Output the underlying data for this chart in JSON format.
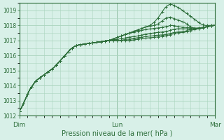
{
  "bg_color": "#d8f0e8",
  "grid_color": "#aad4be",
  "line_color": "#2d6e3a",
  "marker_color": "#2d6e3a",
  "xlabel": "Pression niveau de la mer( hPa )",
  "xlabel_color": "#2d6e3a",
  "tick_color": "#2d6e3a",
  "ylim": [
    1012,
    1019.5
  ],
  "yticks": [
    1012,
    1013,
    1014,
    1015,
    1016,
    1017,
    1018,
    1019
  ],
  "xtick_labels": [
    "Dim",
    "Lun",
    "Mar"
  ],
  "xtick_positions": [
    0,
    48,
    96
  ],
  "total_points": 97,
  "series": [
    [
      1012.3,
      1012.5,
      1012.8,
      1013.1,
      1013.4,
      1013.7,
      1013.9,
      1014.1,
      1014.3,
      1014.4,
      1014.5,
      1014.6,
      1014.7,
      1014.8,
      1014.9,
      1015.0,
      1015.1,
      1015.2,
      1015.35,
      1015.5,
      1015.65,
      1015.8,
      1015.95,
      1016.1,
      1016.25,
      1016.4,
      1016.5,
      1016.6,
      1016.65,
      1016.7,
      1016.72,
      1016.74,
      1016.76,
      1016.78,
      1016.8,
      1016.82,
      1016.84,
      1016.86,
      1016.88,
      1016.9,
      1016.92,
      1016.94,
      1016.96,
      1016.98,
      1017.0,
      1017.05,
      1017.1,
      1017.15,
      1017.2,
      1017.25,
      1017.3,
      1017.35,
      1017.4,
      1017.45,
      1017.5,
      1017.55,
      1017.6,
      1017.65,
      1017.7,
      1017.75,
      1017.8,
      1017.85,
      1017.9,
      1017.95,
      1018.0,
      1018.1,
      1018.2,
      1018.35,
      1018.5,
      1018.7,
      1018.9,
      1019.1,
      1019.25,
      1019.35,
      1019.4,
      1019.38,
      1019.32,
      1019.25,
      1019.18,
      1019.1,
      1019.0,
      1018.9,
      1018.8,
      1018.7,
      1018.6,
      1018.5,
      1018.4,
      1018.3,
      1018.2,
      1018.1,
      1018.05,
      1018.0,
      1018.0,
      1018.0,
      1018.0,
      1018.0,
      1018.0
    ],
    [
      1012.3,
      1012.5,
      1012.8,
      1013.1,
      1013.4,
      1013.7,
      1013.9,
      1014.1,
      1014.3,
      1014.4,
      1014.5,
      1014.6,
      1014.7,
      1014.8,
      1014.9,
      1015.0,
      1015.1,
      1015.2,
      1015.35,
      1015.5,
      1015.65,
      1015.8,
      1015.95,
      1016.1,
      1016.25,
      1016.4,
      1016.5,
      1016.6,
      1016.65,
      1016.7,
      1016.72,
      1016.74,
      1016.76,
      1016.78,
      1016.8,
      1016.82,
      1016.84,
      1016.86,
      1016.88,
      1016.9,
      1016.92,
      1016.94,
      1016.96,
      1016.98,
      1017.0,
      1017.05,
      1017.1,
      1017.15,
      1017.2,
      1017.25,
      1017.3,
      1017.35,
      1017.4,
      1017.45,
      1017.5,
      1017.55,
      1017.6,
      1017.65,
      1017.7,
      1017.75,
      1017.8,
      1017.85,
      1017.9,
      1017.92,
      1017.95,
      1017.97,
      1018.0,
      1018.05,
      1018.1,
      1018.2,
      1018.3,
      1018.4,
      1018.5,
      1018.55,
      1018.55,
      1018.5,
      1018.45,
      1018.4,
      1018.35,
      1018.3,
      1018.25,
      1018.2,
      1018.1,
      1018.0,
      1017.9,
      1017.85,
      1017.82,
      1017.8,
      1017.8,
      1017.8,
      1017.82,
      1017.85,
      1017.9,
      1017.95,
      1018.0,
      1018.0,
      1018.0
    ],
    [
      1012.3,
      1012.5,
      1012.8,
      1013.1,
      1013.4,
      1013.7,
      1013.9,
      1014.1,
      1014.3,
      1014.4,
      1014.5,
      1014.6,
      1014.7,
      1014.8,
      1014.9,
      1015.0,
      1015.1,
      1015.2,
      1015.35,
      1015.5,
      1015.65,
      1015.8,
      1015.95,
      1016.1,
      1016.25,
      1016.4,
      1016.5,
      1016.6,
      1016.65,
      1016.7,
      1016.72,
      1016.74,
      1016.76,
      1016.78,
      1016.8,
      1016.82,
      1016.84,
      1016.86,
      1016.88,
      1016.9,
      1016.92,
      1016.94,
      1016.96,
      1016.98,
      1017.0,
      1017.05,
      1017.1,
      1017.15,
      1017.2,
      1017.25,
      1017.3,
      1017.35,
      1017.4,
      1017.45,
      1017.5,
      1017.52,
      1017.54,
      1017.56,
      1017.6,
      1017.63,
      1017.67,
      1017.7,
      1017.73,
      1017.75,
      1017.77,
      1017.78,
      1017.8,
      1017.82,
      1017.83,
      1017.85,
      1017.87,
      1017.9,
      1017.92,
      1017.95,
      1018.0,
      1018.0,
      1017.98,
      1017.95,
      1017.92,
      1017.9,
      1017.88,
      1017.87,
      1017.86,
      1017.85,
      1017.84,
      1017.83,
      1017.82,
      1017.83,
      1017.84,
      1017.85,
      1017.87,
      1017.9,
      1017.93,
      1017.95,
      1017.97,
      1018.0,
      1018.0
    ],
    [
      1012.3,
      1012.5,
      1012.8,
      1013.1,
      1013.4,
      1013.7,
      1013.9,
      1014.1,
      1014.3,
      1014.4,
      1014.5,
      1014.6,
      1014.7,
      1014.8,
      1014.9,
      1015.0,
      1015.1,
      1015.2,
      1015.35,
      1015.5,
      1015.65,
      1015.8,
      1015.95,
      1016.1,
      1016.25,
      1016.4,
      1016.5,
      1016.6,
      1016.65,
      1016.7,
      1016.72,
      1016.74,
      1016.76,
      1016.78,
      1016.8,
      1016.82,
      1016.84,
      1016.86,
      1016.88,
      1016.9,
      1016.92,
      1016.94,
      1016.96,
      1016.98,
      1017.0,
      1017.02,
      1017.04,
      1017.06,
      1017.08,
      1017.1,
      1017.12,
      1017.14,
      1017.17,
      1017.2,
      1017.22,
      1017.24,
      1017.26,
      1017.28,
      1017.3,
      1017.33,
      1017.36,
      1017.39,
      1017.42,
      1017.44,
      1017.46,
      1017.48,
      1017.5,
      1017.52,
      1017.54,
      1017.55,
      1017.56,
      1017.58,
      1017.6,
      1017.63,
      1017.67,
      1017.72,
      1017.75,
      1017.77,
      1017.78,
      1017.78,
      1017.78,
      1017.78,
      1017.78,
      1017.78,
      1017.78,
      1017.78,
      1017.79,
      1017.8,
      1017.82,
      1017.84,
      1017.86,
      1017.88,
      1017.9,
      1017.93,
      1017.96,
      1018.0,
      1018.0
    ],
    [
      1012.3,
      1012.5,
      1012.8,
      1013.1,
      1013.4,
      1013.7,
      1013.9,
      1014.1,
      1014.3,
      1014.4,
      1014.5,
      1014.6,
      1014.7,
      1014.8,
      1014.9,
      1015.0,
      1015.1,
      1015.2,
      1015.35,
      1015.5,
      1015.65,
      1015.8,
      1015.95,
      1016.1,
      1016.25,
      1016.4,
      1016.5,
      1016.6,
      1016.65,
      1016.7,
      1016.72,
      1016.74,
      1016.76,
      1016.78,
      1016.8,
      1016.82,
      1016.84,
      1016.86,
      1016.88,
      1016.9,
      1016.92,
      1016.94,
      1016.96,
      1016.98,
      1017.0,
      1017.0,
      1017.0,
      1017.0,
      1017.0,
      1017.0,
      1017.02,
      1017.04,
      1017.06,
      1017.08,
      1017.1,
      1017.12,
      1017.14,
      1017.16,
      1017.18,
      1017.2,
      1017.22,
      1017.24,
      1017.26,
      1017.28,
      1017.3,
      1017.3,
      1017.32,
      1017.34,
      1017.35,
      1017.36,
      1017.37,
      1017.38,
      1017.4,
      1017.43,
      1017.46,
      1017.5,
      1017.53,
      1017.55,
      1017.57,
      1017.58,
      1017.59,
      1017.6,
      1017.65,
      1017.7,
      1017.73,
      1017.75,
      1017.77,
      1017.79,
      1017.82,
      1017.85,
      1017.87,
      1017.9,
      1017.92,
      1017.95,
      1017.97,
      1018.0,
      1018.0
    ],
    [
      1012.3,
      1012.5,
      1012.8,
      1013.1,
      1013.4,
      1013.7,
      1013.9,
      1014.1,
      1014.3,
      1014.4,
      1014.5,
      1014.6,
      1014.7,
      1014.8,
      1014.9,
      1015.0,
      1015.1,
      1015.2,
      1015.35,
      1015.5,
      1015.65,
      1015.8,
      1015.95,
      1016.1,
      1016.25,
      1016.4,
      1016.5,
      1016.6,
      1016.65,
      1016.7,
      1016.72,
      1016.74,
      1016.76,
      1016.78,
      1016.8,
      1016.82,
      1016.84,
      1016.86,
      1016.88,
      1016.9,
      1016.92,
      1016.94,
      1016.96,
      1016.98,
      1017.0,
      1017.0,
      1017.0,
      1017.0,
      1017.0,
      1017.0,
      1017.0,
      1017.0,
      1017.0,
      1017.0,
      1017.0,
      1017.02,
      1017.04,
      1017.06,
      1017.08,
      1017.1,
      1017.12,
      1017.14,
      1017.16,
      1017.17,
      1017.18,
      1017.19,
      1017.2,
      1017.22,
      1017.24,
      1017.26,
      1017.28,
      1017.3,
      1017.32,
      1017.35,
      1017.38,
      1017.42,
      1017.46,
      1017.5,
      1017.52,
      1017.53,
      1017.54,
      1017.55,
      1017.58,
      1017.62,
      1017.66,
      1017.7,
      1017.73,
      1017.76,
      1017.79,
      1017.82,
      1017.86,
      1017.9,
      1017.93,
      1017.95,
      1017.97,
      1018.0,
      1018.0
    ]
  ]
}
